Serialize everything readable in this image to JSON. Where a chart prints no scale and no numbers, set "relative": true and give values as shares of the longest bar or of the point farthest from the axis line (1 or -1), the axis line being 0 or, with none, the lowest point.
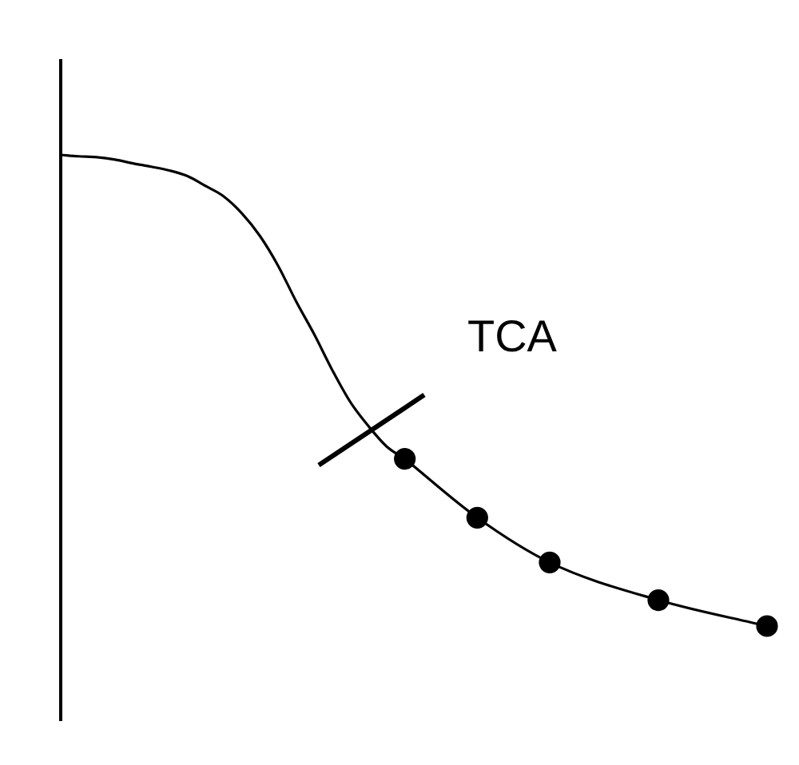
{
  "chart_data": {
    "type": "line",
    "relative": true,
    "grid": false,
    "legend": false,
    "categories": [
      null,
      null,
      null,
      null,
      null,
      null,
      null,
      null,
      null,
      null,
      null,
      null,
      null,
      null,
      null,
      null,
      null,
      null,
      null,
      null,
      null,
      null,
      null,
      null,
      null,
      null,
      null,
      null,
      null,
      null,
      null,
      null,
      null,
      null,
      null,
      null,
      null,
      null,
      null,
      null
    ],
    "series": [
      {
        "color": "#000000",
        "marker": "none",
        "values": [
          1.0,
          0.997,
          0.995,
          0.99,
          0.982,
          0.975,
          0.967,
          0.955,
          0.934,
          0.912,
          0.876,
          0.828,
          0.765,
          0.689,
          0.619,
          0.543,
          0.475,
          0.424,
          0.381,
          0.355,
          null,
          null,
          null,
          null,
          null,
          null,
          null,
          null,
          null,
          null,
          null,
          null,
          null,
          null,
          null,
          null,
          null,
          null,
          null,
          null
        ]
      },
      {
        "color": "#000000",
        "marker": "circle",
        "values": [
          null,
          null,
          null,
          null,
          null,
          null,
          null,
          null,
          null,
          null,
          null,
          null,
          null,
          null,
          null,
          null,
          null,
          null,
          null,
          0.355,
          null,
          null,
          null,
          0.23,
          null,
          null,
          null,
          0.135,
          null,
          null,
          null,
          null,
          null,
          0.055,
          null,
          null,
          null,
          null,
          null,
          0
        ]
      }
    ],
    "annotations": [
      "TCA"
    ]
  }
}
